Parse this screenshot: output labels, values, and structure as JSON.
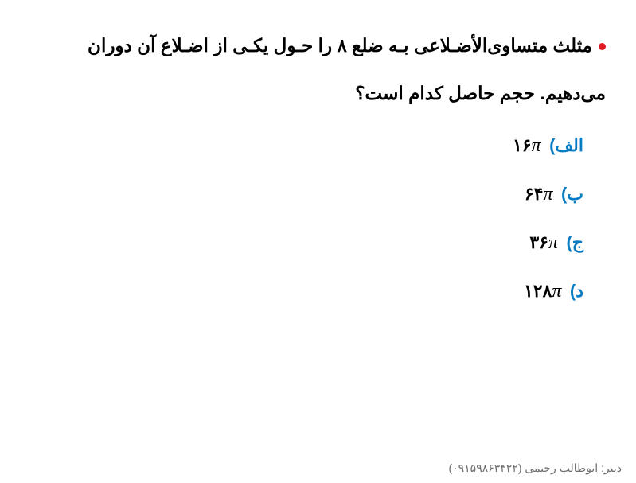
{
  "colors": {
    "bullet": "#e01b22",
    "question_text": "#000000",
    "option_label": "#0a7cc4",
    "option_value": "#000000",
    "footer": "#6e6e6e"
  },
  "question": {
    "line1": "مثلث متساوی‌الأضـلاعی بـه ضلع ۸ را حـول یکـی از اضـلاع آن دوران",
    "line2": "می‌دهیم. حجم حاصل کدام است؟"
  },
  "options": [
    {
      "label": "الف)",
      "number": "۱۶",
      "pi": "π"
    },
    {
      "label": "ب)",
      "number": "۶۴",
      "pi": "π"
    },
    {
      "label": "ج)",
      "number": "۳۶",
      "pi": "π"
    },
    {
      "label": "د)",
      "number": "۱۲۸",
      "pi": "π"
    }
  ],
  "footer": {
    "teacher_label": "دبیر: ابوطالب رحیمی",
    "phone": "(۰۹۱۵۹۸۶۳۴۲۲)"
  }
}
